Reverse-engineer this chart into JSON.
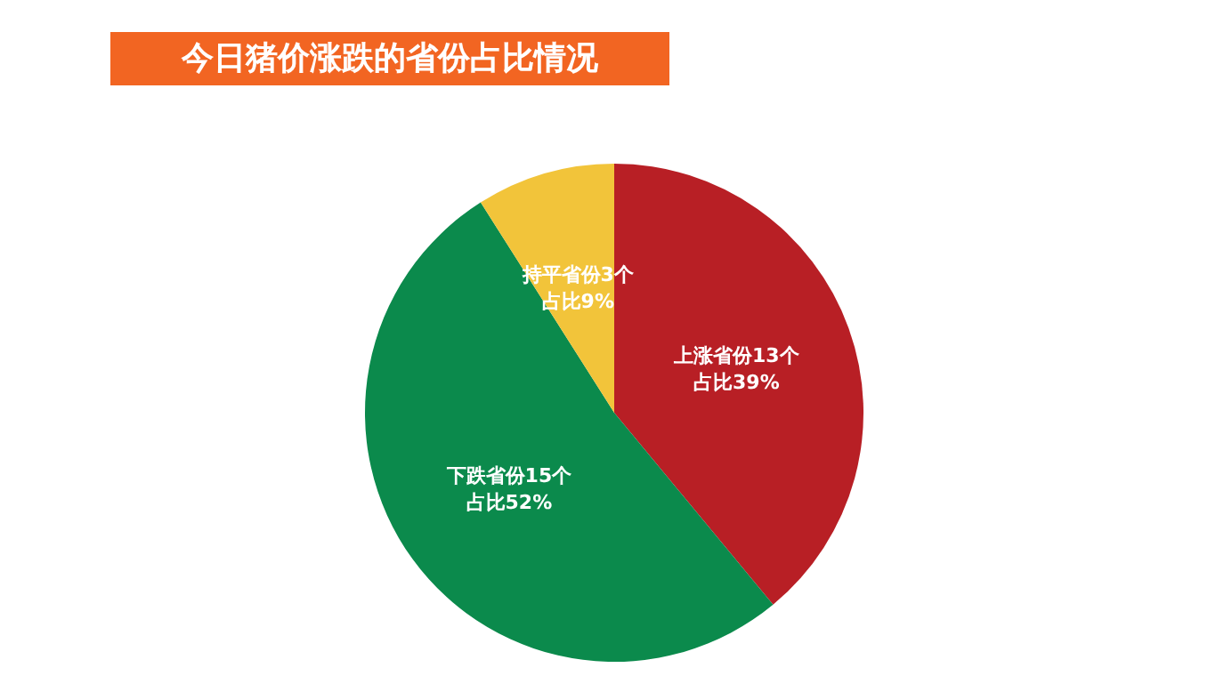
{
  "chart_data": {
    "type": "pie",
    "title": "今日猪价涨跌的省份占比情况",
    "categories": [
      "上涨省份13个",
      "下跌省份15个",
      "持平省份3个"
    ],
    "values": [
      39,
      52,
      9
    ],
    "value_labels": [
      "占比39%",
      "占比52%",
      "占比9%"
    ],
    "colors": [
      "#b81f25",
      "#0b8a4c",
      "#f2c43a"
    ],
    "legend": false
  }
}
